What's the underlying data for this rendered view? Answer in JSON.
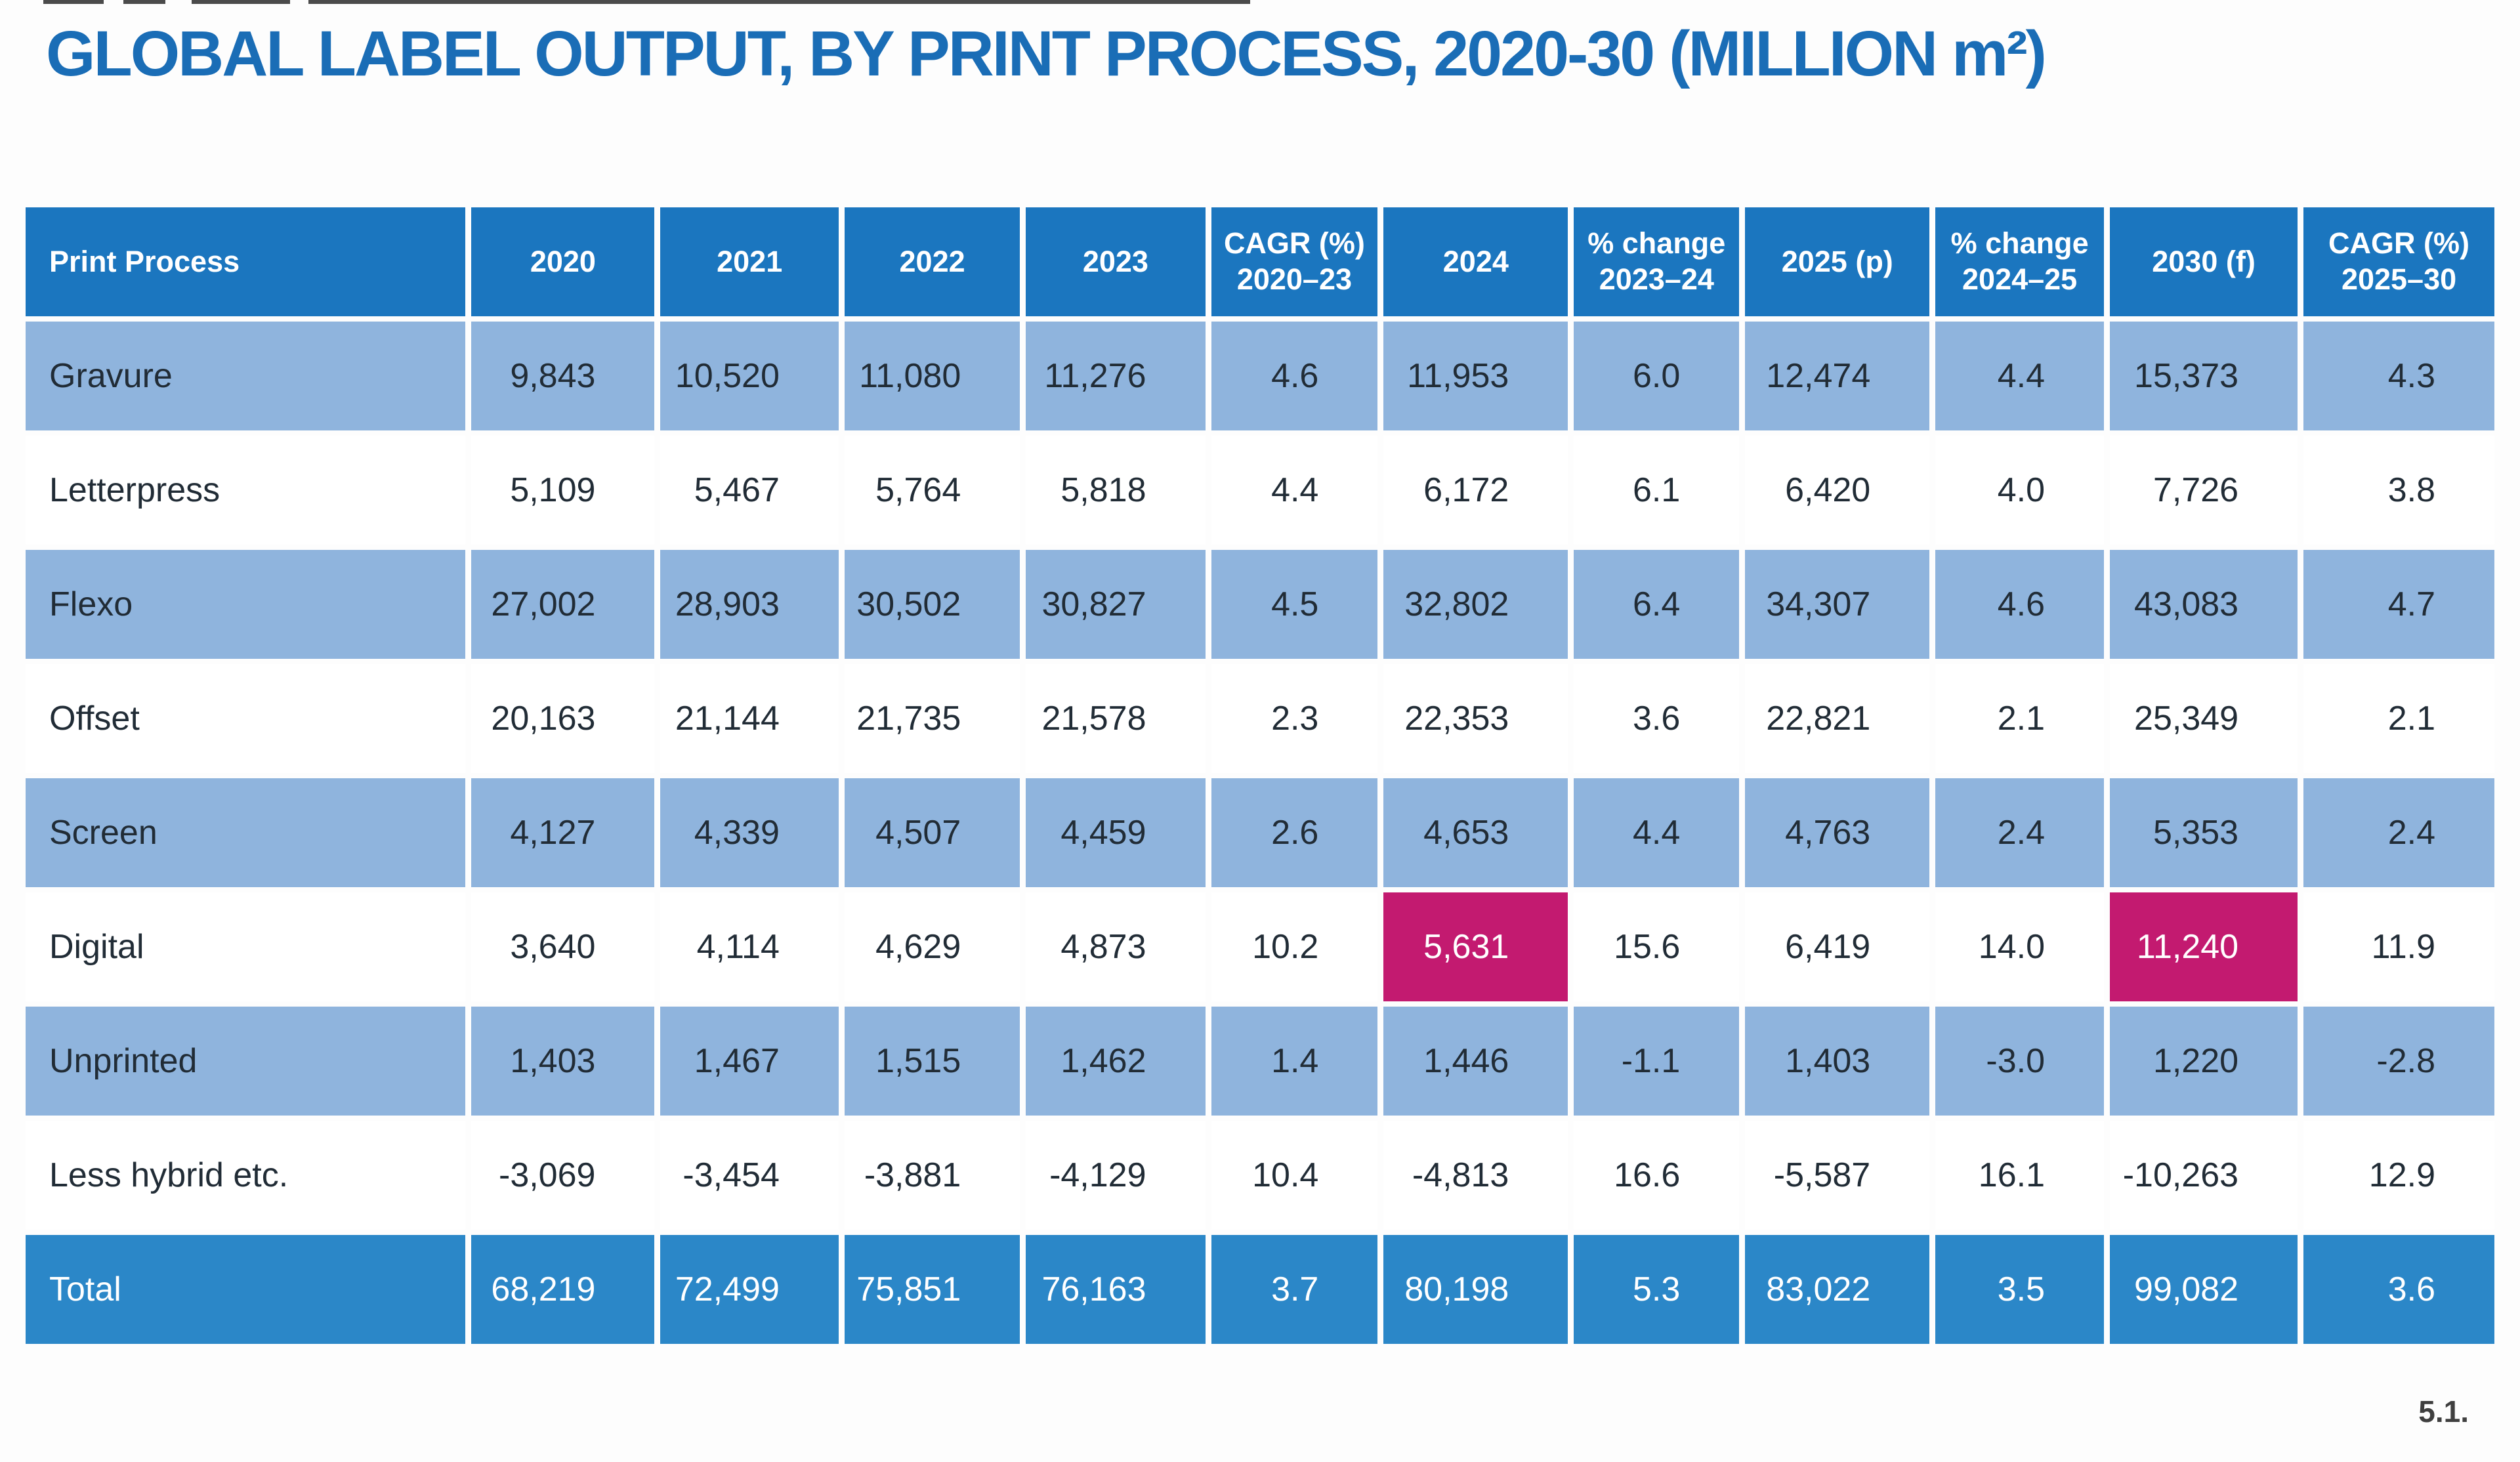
{
  "page_title": "GLOBAL LABEL OUTPUT, BY PRINT PROCESS, 2020-30 (MILLION m²)",
  "footer_note": "5.1.",
  "colors": {
    "title_blue": "#1a6db6",
    "header_blue": "#1b76bf",
    "row_light_blue": "#8fb4dd",
    "total_row_blue": "#2b87c8",
    "highlight_magenta": "#c31a70",
    "text_dark": "#212c36"
  },
  "chart_data": {
    "type": "table",
    "title": "GLOBAL LABEL OUTPUT, BY PRINT PROCESS, 2020-30 (MILLION m²)",
    "unit": "million m²",
    "columns": [
      "Print Process",
      "2020",
      "2021",
      "2022",
      "2023",
      "CAGR (%)\n2020–23",
      "2024",
      "% change\n2023–24",
      "2025 (p)",
      "% change\n2024–25",
      "2030 (f)",
      "CAGR (%)\n2025–30"
    ],
    "rows": [
      {
        "label": "Gravure",
        "shade": "light",
        "values": [
          "9,843",
          "10,520",
          "11,080",
          "11,276",
          "4.6",
          "11,953",
          "6.0",
          "12,474",
          "4.4",
          "15,373",
          "4.3"
        ]
      },
      {
        "label": "Letterpress",
        "shade": "white",
        "values": [
          "5,109",
          "5,467",
          "5,764",
          "5,818",
          "4.4",
          "6,172",
          "6.1",
          "6,420",
          "4.0",
          "7,726",
          "3.8"
        ]
      },
      {
        "label": "Flexo",
        "shade": "light",
        "values": [
          "27,002",
          "28,903",
          "30,502",
          "30,827",
          "4.5",
          "32,802",
          "6.4",
          "34,307",
          "4.6",
          "43,083",
          "4.7"
        ]
      },
      {
        "label": "Offset",
        "shade": "white",
        "values": [
          "20,163",
          "21,144",
          "21,735",
          "21,578",
          "2.3",
          "22,353",
          "3.6",
          "22,821",
          "2.1",
          "25,349",
          "2.1"
        ]
      },
      {
        "label": "Screen",
        "shade": "light",
        "values": [
          "4,127",
          "4,339",
          "4,507",
          "4,459",
          "2.6",
          "4,653",
          "4.4",
          "4,763",
          "2.4",
          "5,353",
          "2.4"
        ]
      },
      {
        "label": "Digital",
        "shade": "white",
        "highlight_cols": [
          5,
          9
        ],
        "values": [
          "3,640",
          "4,114",
          "4,629",
          "4,873",
          "10.2",
          "5,631",
          "15.6",
          "6,419",
          "14.0",
          "11,240",
          "11.9"
        ]
      },
      {
        "label": "Unprinted",
        "shade": "light",
        "values": [
          "1,403",
          "1,467",
          "1,515",
          "1,462",
          "1.4",
          "1,446",
          "-1.1",
          "1,403",
          "-3.0",
          "1,220",
          "-2.8"
        ]
      },
      {
        "label": "Less hybrid etc.",
        "shade": "white",
        "values": [
          "-3,069",
          "-3,454",
          "-3,881",
          "-4,129",
          "10.4",
          "-4,813",
          "16.6",
          "-5,587",
          "16.1",
          "-10,263",
          "12.9"
        ]
      },
      {
        "label": "Total",
        "shade": "total",
        "values": [
          "68,219",
          "72,499",
          "75,851",
          "76,163",
          "3.7",
          "80,198",
          "5.3",
          "83,022",
          "3.5",
          "99,082",
          "3.6"
        ]
      }
    ]
  }
}
